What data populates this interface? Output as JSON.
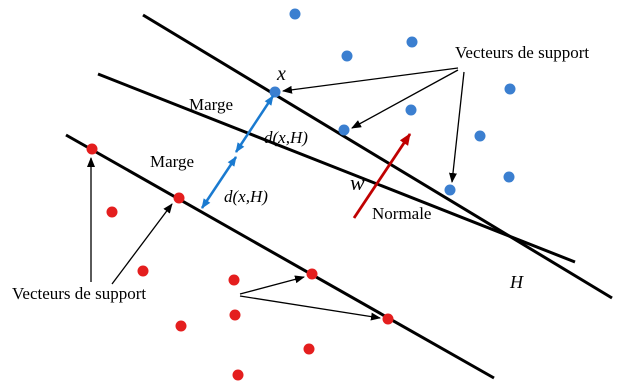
{
  "diagram": {
    "labels": {
      "support_top_right": "Vecteurs de support",
      "support_bottom_left": "Vecteurs de support",
      "point_x": "x",
      "margin_top": "Marge",
      "margin_bottom": "Marge",
      "distance_top": "d(x,H)",
      "distance_bottom": "d(x,H)",
      "normal_vector": "w",
      "normal_label": "Normale",
      "hyperplane": "H"
    },
    "colors": {
      "positive_class": "#3b7fd0",
      "negative_class": "#e41e1e",
      "margin_arrow": "#1a7ad0",
      "normal_arrow": "#c00000",
      "lines": "#000000"
    }
  }
}
